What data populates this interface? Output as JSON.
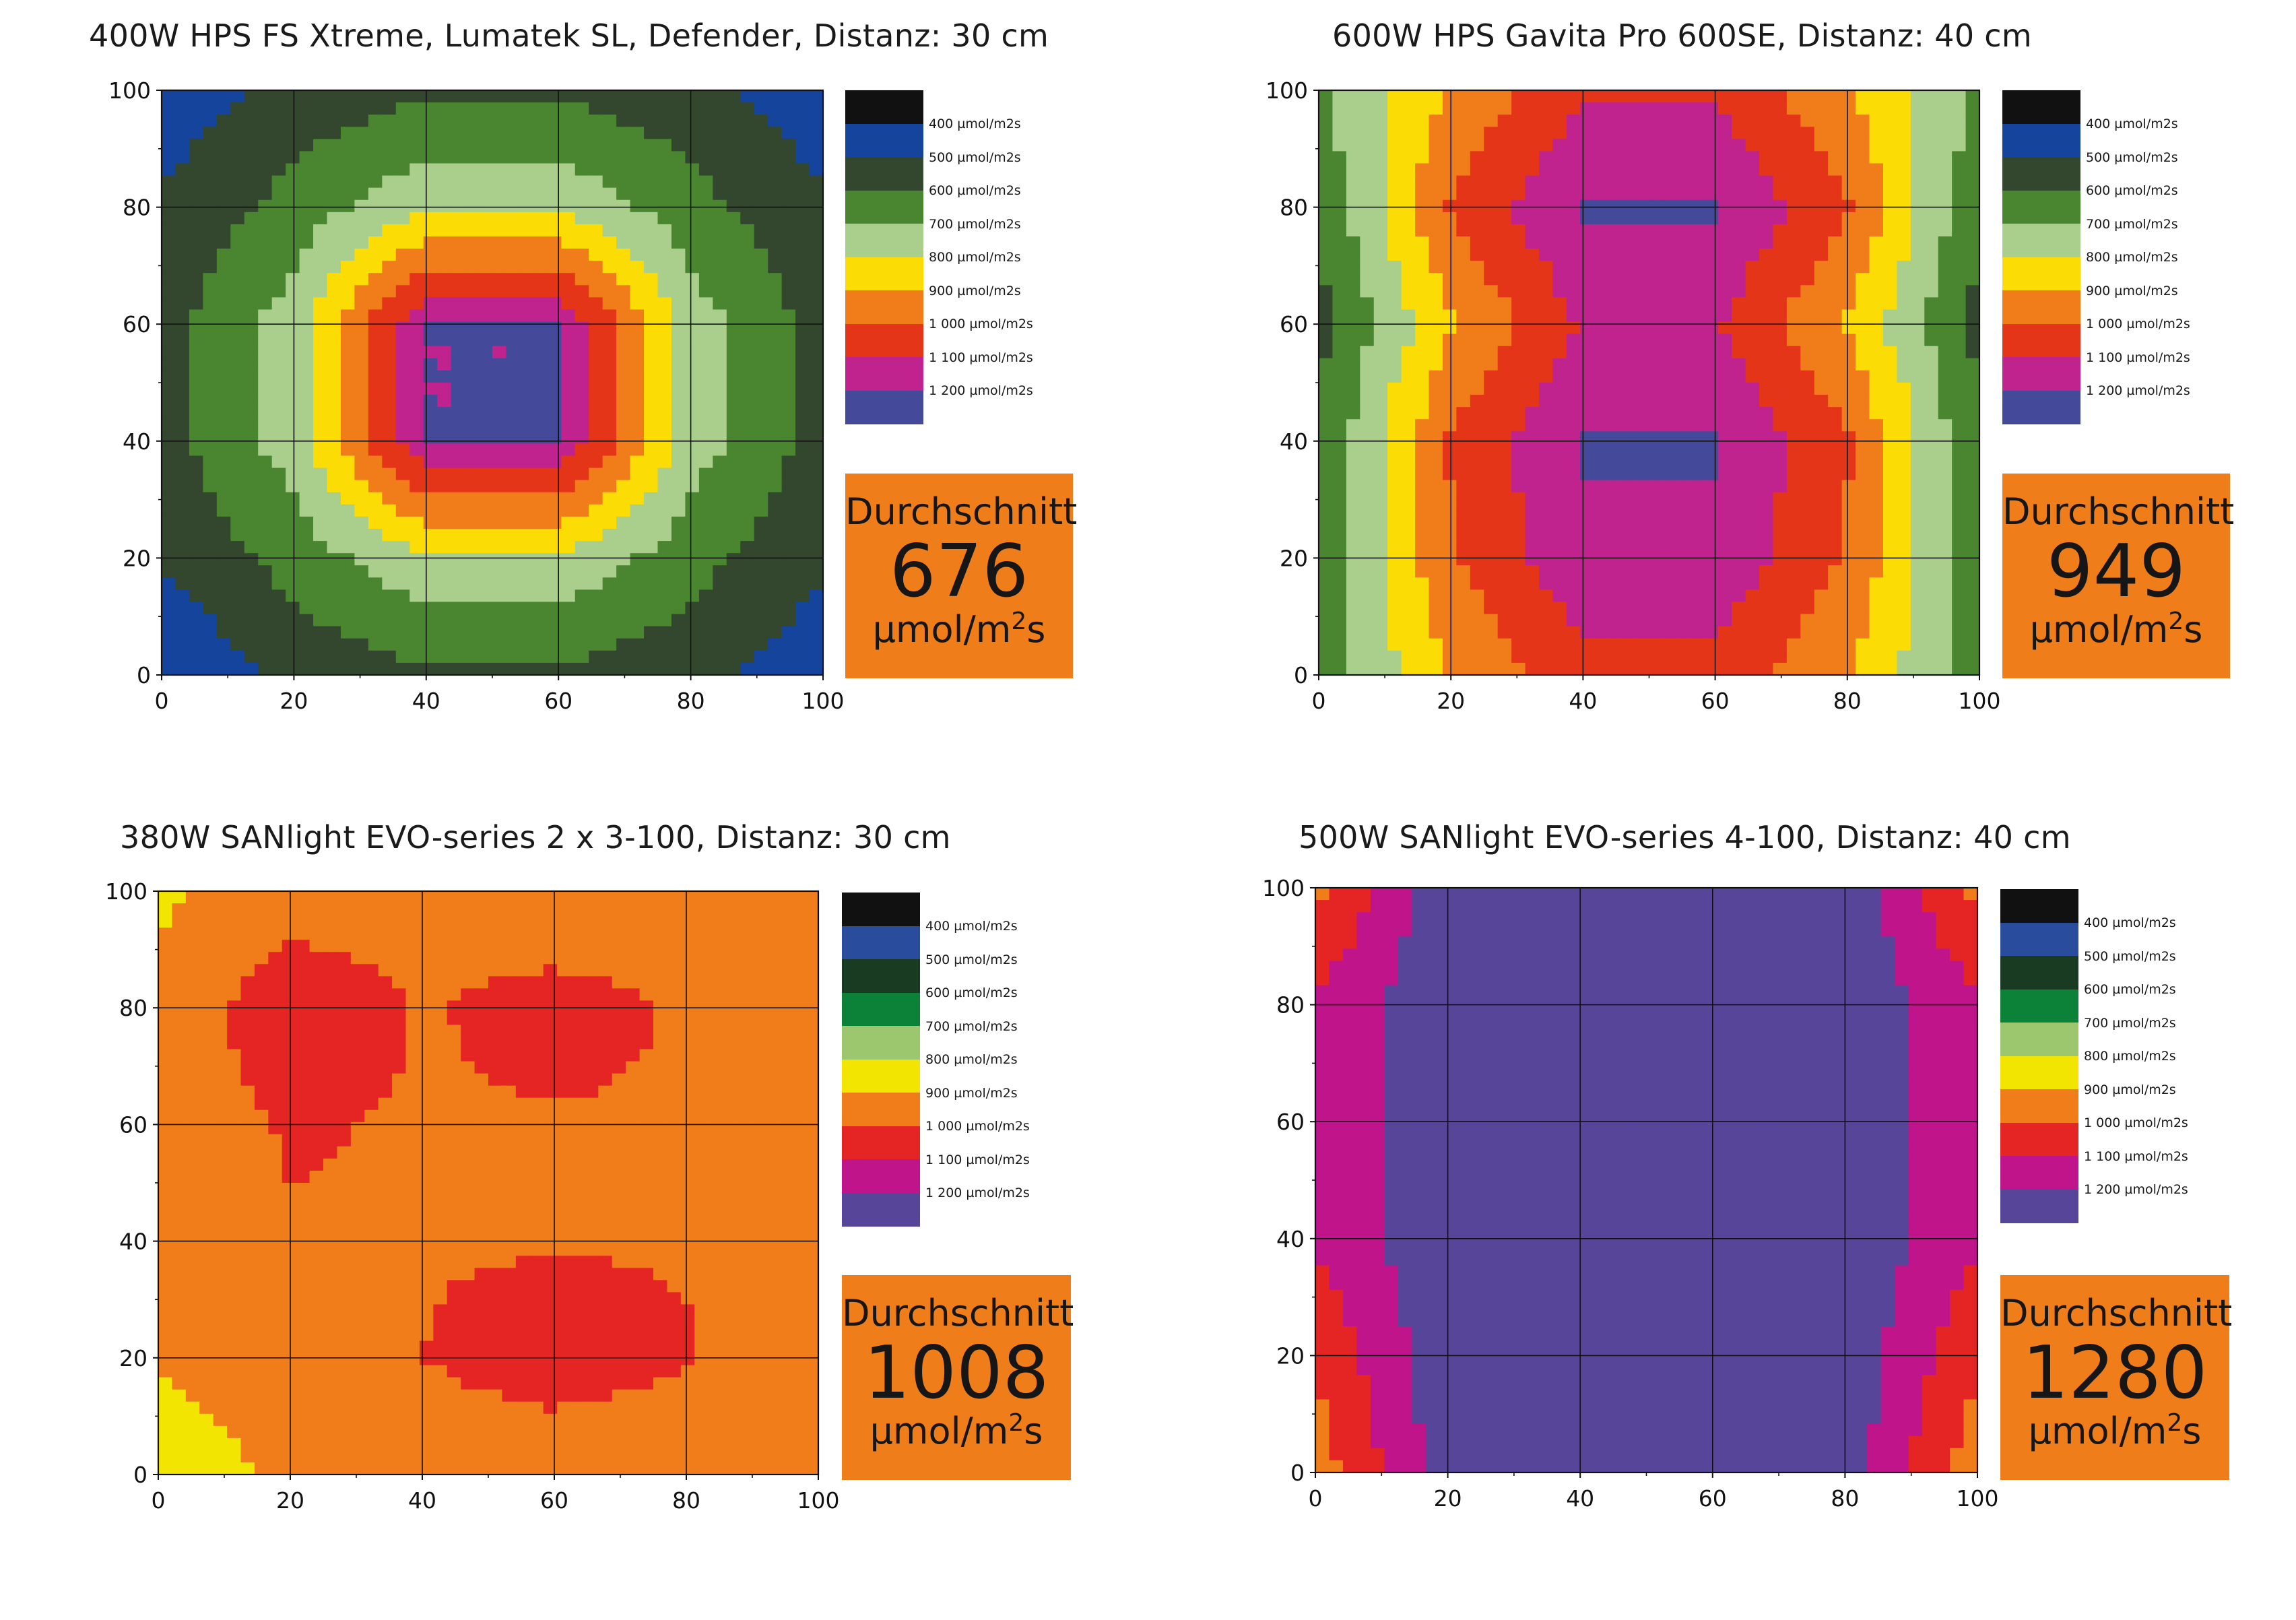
{
  "unit_parts": {
    "mu": "µmol/m",
    "sup": "2",
    "tail": "s"
  },
  "chart_data": [
    {
      "type": "heatmap",
      "title": "400W HPS FS Xtreme, Lumatek SL, Defender, Distanz: 30 cm",
      "xlim": [
        0,
        100
      ],
      "ylim": [
        0,
        100
      ],
      "x_ticks": [
        "0",
        "20",
        "40",
        "60",
        "80",
        "100"
      ],
      "y_ticks": [
        "0",
        "20",
        "40",
        "60",
        "80",
        "100"
      ],
      "grid": true,
      "grid_x": [
        0,
        20,
        40,
        60,
        80,
        100
      ],
      "grid_y": [
        0,
        20,
        40,
        60,
        80,
        100
      ],
      "levels": [
        {
          "label": "400 µmol/m2s",
          "color": "#111111"
        },
        {
          "label": "500 µmol/m2s",
          "color": "#15449c"
        },
        {
          "label": "600 µmol/m2s",
          "color": "#33472e"
        },
        {
          "label": "700 µmol/m2s",
          "color": "#4a8630"
        },
        {
          "label": "800 µmol/m2s",
          "color": "#aacf8c"
        },
        {
          "label": "900 µmol/m2s",
          "color": "#fcdc05"
        },
        {
          "label": "1 000 µmol/m2s",
          "color": "#f07d1a"
        },
        {
          "label": "1 100 µmol/m2s",
          "color": "#e53519"
        },
        {
          "label": "1 200 µmol/m2s",
          "color": "#c0238d"
        },
        {
          "label": "",
          "color": "#45499a"
        }
      ],
      "z": [
        [
          490,
          580,
          640,
          640,
          580,
          490
        ],
        [
          560,
          690,
          830,
          830,
          690,
          560
        ],
        [
          610,
          800,
          1250,
          1250,
          800,
          610
        ],
        [
          610,
          800,
          1250,
          1250,
          800,
          610
        ],
        [
          560,
          690,
          830,
          830,
          690,
          560
        ],
        [
          450,
          580,
          640,
          640,
          580,
          490
        ]
      ],
      "average": {
        "label": "Durchschnitt",
        "value": "676"
      }
    },
    {
      "type": "heatmap",
      "title": "600W HPS Gavita Pro 600SE, Distanz: 40 cm",
      "xlim": [
        0,
        100
      ],
      "ylim": [
        0,
        100
      ],
      "x_ticks": [
        "0",
        "20",
        "40",
        "60",
        "80",
        "100"
      ],
      "y_ticks": [
        "0",
        "20",
        "40",
        "60",
        "80",
        "100"
      ],
      "grid": true,
      "grid_x": [
        0,
        20,
        40,
        60,
        80,
        100
      ],
      "grid_y": [
        0,
        20,
        40,
        60,
        80,
        100
      ],
      "levels": [
        {
          "label": "400 µmol/m2s",
          "color": "#111111"
        },
        {
          "label": "500 µmol/m2s",
          "color": "#15449c"
        },
        {
          "label": "600 µmol/m2s",
          "color": "#33472e"
        },
        {
          "label": "700 µmol/m2s",
          "color": "#4a8630"
        },
        {
          "label": "800 µmol/m2s",
          "color": "#aacf8c"
        },
        {
          "label": "900 µmol/m2s",
          "color": "#fcdc05"
        },
        {
          "label": "1 000 µmol/m2s",
          "color": "#f07d1a"
        },
        {
          "label": "1 100 µmol/m2s",
          "color": "#e53519"
        },
        {
          "label": "1 200 µmol/m2s",
          "color": "#c0238d"
        },
        {
          "label": "",
          "color": "#45499a"
        }
      ],
      "z": [
        [
          740,
          960,
          1130,
          1130,
          960,
          740
        ],
        [
          660,
          1060,
          1260,
          1260,
          1060,
          660
        ],
        [
          620,
          940,
          1160,
          1160,
          940,
          620
        ],
        [
          660,
          1060,
          1260,
          1260,
          1060,
          660
        ],
        [
          680,
          1040,
          1230,
          1230,
          1040,
          680
        ],
        [
          680,
          960,
          1110,
          1110,
          960,
          680
        ]
      ],
      "average": {
        "label": "Durchschnitt",
        "value": "949"
      }
    },
    {
      "type": "heatmap",
      "title": "380W SANlight EVO-series  2 x 3-100, Distanz: 30 cm",
      "xlim": [
        0,
        100
      ],
      "ylim": [
        0,
        100
      ],
      "x_ticks": [
        "0",
        "20",
        "40",
        "60",
        "80",
        "100"
      ],
      "y_ticks": [
        "0",
        "20",
        "40",
        "60",
        "80",
        "100"
      ],
      "grid": true,
      "grid_x": [
        0,
        20,
        40,
        60,
        80,
        100
      ],
      "grid_y": [
        0,
        20,
        40,
        60,
        80,
        100
      ],
      "levels": [
        {
          "label": "400 µmol/m2s",
          "color": "#111111"
        },
        {
          "label": "500 µmol/m2s",
          "color": "#2a4c9c"
        },
        {
          "label": "600 µmol/m2s",
          "color": "#193b22"
        },
        {
          "label": "700 µmol/m2s",
          "color": "#0c8238"
        },
        {
          "label": "800 µmol/m2s",
          "color": "#9cc76e"
        },
        {
          "label": "900 µmol/m2s",
          "color": "#f2e502"
        },
        {
          "label": "1 000 µmol/m2s",
          "color": "#f07d1a"
        },
        {
          "label": "1 100 µmol/m2s",
          "color": "#e52524"
        },
        {
          "label": "1 200 µmol/m2s",
          "color": "#c0158a"
        },
        {
          "label": "",
          "color": "#57459a"
        }
      ],
      "z": [
        [
          940,
          985,
          1015,
          970,
          1010,
          1010
        ],
        [
          960,
          1135,
          1040,
          1090,
          1040,
          1010
        ],
        [
          985,
          1060,
          1040,
          1040,
          1040,
          1015
        ],
        [
          1000,
          1040,
          1040,
          1040,
          1040,
          990
        ],
        [
          960,
          1030,
          1050,
          1120,
          1060,
          980
        ],
        [
          880,
          970,
          970,
          960,
          960,
          960
        ]
      ],
      "average": {
        "label": "Durchschnitt",
        "value": "1008"
      }
    },
    {
      "type": "heatmap",
      "title": "500W SANlight EVO-series 4-100, Distanz: 40 cm",
      "xlim": [
        0,
        100
      ],
      "ylim": [
        0,
        100
      ],
      "x_ticks": [
        "0",
        "20",
        "40",
        "60",
        "80",
        "100"
      ],
      "y_ticks": [
        "0",
        "20",
        "40",
        "60",
        "80",
        "100"
      ],
      "grid": true,
      "grid_x": [
        0,
        20,
        40,
        60,
        80,
        100
      ],
      "grid_y": [
        0,
        20,
        40,
        60,
        80,
        100
      ],
      "levels": [
        {
          "label": "400 µmol/m2s",
          "color": "#111111"
        },
        {
          "label": "500 µmol/m2s",
          "color": "#2a4c9c"
        },
        {
          "label": "600 µmol/m2s",
          "color": "#193b22"
        },
        {
          "label": "700 µmol/m2s",
          "color": "#0c8238"
        },
        {
          "label": "800 µmol/m2s",
          "color": "#9cc76e"
        },
        {
          "label": "900 µmol/m2s",
          "color": "#f2e502"
        },
        {
          "label": "1 000 µmol/m2s",
          "color": "#f07d1a"
        },
        {
          "label": "1 100 µmol/m2s",
          "color": "#e52524"
        },
        {
          "label": "1 200 µmol/m2s",
          "color": "#c0158a"
        },
        {
          "label": "",
          "color": "#57459a"
        }
      ],
      "z": [
        [
          1010,
          1330,
          1330,
          1330,
          1330,
          1010
        ],
        [
          1170,
          1330,
          1330,
          1330,
          1330,
          1170
        ],
        [
          1170,
          1330,
          1330,
          1330,
          1330,
          1170
        ],
        [
          1170,
          1330,
          1330,
          1330,
          1330,
          1170
        ],
        [
          1060,
          1330,
          1330,
          1330,
          1330,
          1060
        ],
        [
          1000,
          1300,
          1330,
          1330,
          1300,
          990
        ]
      ],
      "average": {
        "label": "Durchschnitt",
        "value": "1280"
      }
    }
  ]
}
